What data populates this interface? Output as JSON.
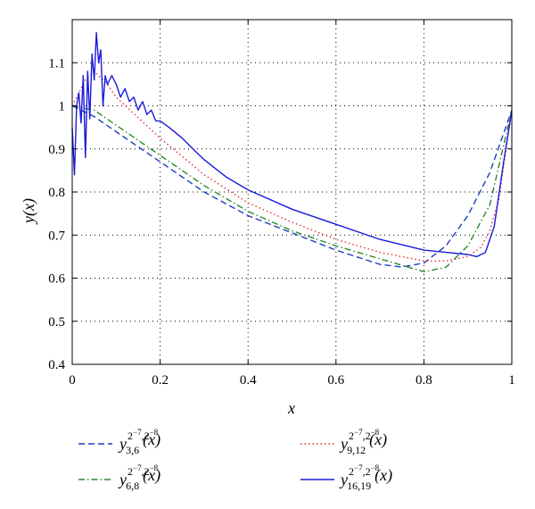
{
  "chart_data": {
    "type": "line",
    "title": "",
    "xlabel": "x",
    "ylabel": "y(x)",
    "xlim": [
      0,
      1
    ],
    "ylim": [
      0.4,
      1.2
    ],
    "xticks": [
      "0",
      "0.2",
      "0.4",
      "0.6",
      "0.8",
      "1"
    ],
    "yticks": [
      "0.4",
      "0.5",
      "0.6",
      "0.7",
      "0.8",
      "0.9",
      "1",
      "1.1"
    ],
    "grid": true,
    "legend_position": "bottom",
    "series": [
      {
        "name": "y_{3,6}^{2^{-7},2^{-8}}(x)",
        "legend": {
          "base": "y",
          "sub": "3,6",
          "sup": "2",
          "e1": "−7",
          "mid": ",2",
          "e2": "−8",
          "arg": "(x)"
        },
        "color": "#1f3fbf",
        "style": "dashed",
        "x": [
          0,
          0.05,
          0.1,
          0.15,
          0.2,
          0.3,
          0.4,
          0.5,
          0.6,
          0.7,
          0.75,
          0.8,
          0.85,
          0.9,
          0.95,
          1.0
        ],
        "y": [
          1.0,
          0.975,
          0.94,
          0.905,
          0.87,
          0.8,
          0.745,
          0.705,
          0.665,
          0.632,
          0.626,
          0.635,
          0.675,
          0.745,
          0.845,
          0.99
        ]
      },
      {
        "name": "y_{6,8}^{2^{-7},2^{-8}}(x)",
        "legend": {
          "base": "y",
          "sub": "6,8",
          "sup": "2",
          "e1": "−7",
          "mid": ",2",
          "e2": "−8",
          "arg": "(x)"
        },
        "color": "#2a8a2a",
        "style": "dashdot",
        "x": [
          0,
          0.05,
          0.1,
          0.15,
          0.2,
          0.3,
          0.4,
          0.5,
          0.6,
          0.7,
          0.8,
          0.85,
          0.9,
          0.95,
          1.0
        ],
        "y": [
          1.0,
          0.99,
          0.955,
          0.92,
          0.885,
          0.815,
          0.755,
          0.71,
          0.675,
          0.645,
          0.615,
          0.625,
          0.675,
          0.77,
          0.99
        ]
      },
      {
        "name": "y_{9,12}^{2^{-7},2^{-8}}(x)",
        "legend": {
          "base": "y",
          "sub": "9,12",
          "sup": "2",
          "e1": "−7",
          "mid": ",2",
          "e2": "−8",
          "arg": "(x)"
        },
        "color": "#e03030",
        "style": "dotted",
        "x": [
          0,
          0.03,
          0.05,
          0.08,
          0.1,
          0.2,
          0.3,
          0.4,
          0.5,
          0.6,
          0.7,
          0.8,
          0.85,
          0.9,
          0.93,
          0.95,
          0.97,
          1.0
        ],
        "y": [
          1.0,
          1.06,
          1.08,
          1.05,
          1.02,
          0.925,
          0.84,
          0.775,
          0.73,
          0.69,
          0.66,
          0.64,
          0.64,
          0.65,
          0.672,
          0.71,
          0.78,
          0.99
        ]
      },
      {
        "name": "y_{16,19}^{2^{-7},2^{-8}}(x)",
        "legend": {
          "base": "y",
          "sub": "16,19",
          "sup": "2",
          "e1": "−7",
          "mid": ",2",
          "e2": "−8",
          "arg": "(x)"
        },
        "color": "#1a1adb",
        "style": "solid",
        "x": [
          0,
          0.005,
          0.01,
          0.015,
          0.02,
          0.025,
          0.03,
          0.035,
          0.04,
          0.045,
          0.05,
          0.055,
          0.06,
          0.065,
          0.07,
          0.075,
          0.08,
          0.09,
          0.1,
          0.11,
          0.12,
          0.13,
          0.14,
          0.15,
          0.16,
          0.17,
          0.18,
          0.19,
          0.2,
          0.22,
          0.25,
          0.28,
          0.3,
          0.35,
          0.4,
          0.5,
          0.6,
          0.7,
          0.8,
          0.85,
          0.9,
          0.92,
          0.94,
          0.96,
          0.98,
          1.0
        ],
        "y": [
          0.95,
          0.84,
          1.0,
          1.03,
          0.96,
          1.07,
          0.88,
          1.08,
          0.97,
          1.12,
          1.06,
          1.17,
          1.1,
          1.13,
          1.0,
          1.07,
          1.05,
          1.07,
          1.05,
          1.02,
          1.04,
          1.01,
          1.02,
          0.99,
          1.01,
          0.98,
          0.99,
          0.965,
          0.965,
          0.95,
          0.925,
          0.895,
          0.875,
          0.835,
          0.805,
          0.76,
          0.725,
          0.69,
          0.665,
          0.66,
          0.655,
          0.65,
          0.66,
          0.72,
          0.86,
          0.99
        ]
      }
    ]
  }
}
